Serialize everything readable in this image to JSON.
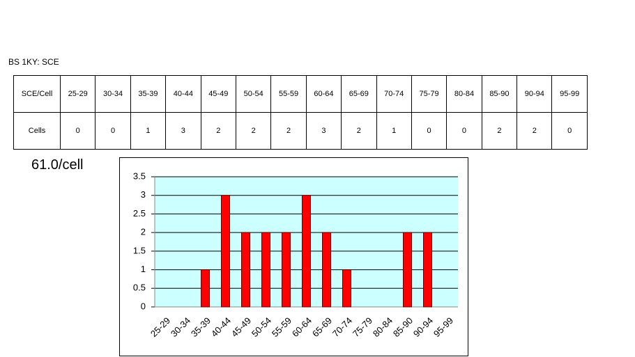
{
  "header": {
    "title": "BS 1KY: SCE"
  },
  "table": {
    "columns": [
      "SCE/Cell",
      "25-29",
      "30-34",
      "35-39",
      "40-44",
      "45-49",
      "50-54",
      "55-59",
      "60-64",
      "65-69",
      "70-74",
      "75-79",
      "80-84",
      "85-90",
      "90-94",
      "95-99"
    ],
    "rows": [
      [
        "Cells",
        0,
        0,
        1,
        3,
        2,
        2,
        2,
        3,
        2,
        1,
        0,
        0,
        2,
        2,
        0
      ]
    ]
  },
  "annotation": "61.0/cell",
  "chart_data": {
    "type": "bar",
    "categories": [
      "25-29",
      "30-34",
      "35-39",
      "40-44",
      "45-49",
      "50-54",
      "55-59",
      "60-64",
      "65-69",
      "70-74",
      "75-79",
      "80-84",
      "85-90",
      "90-94",
      "95-99"
    ],
    "values": [
      0,
      0,
      1,
      3,
      2,
      2,
      2,
      3,
      2,
      1,
      0,
      0,
      2,
      2,
      0
    ],
    "color": "#ff0000",
    "background": "#ccffff",
    "ylim": [
      0,
      3.5
    ],
    "yticks": [
      0,
      0.5,
      1,
      1.5,
      2,
      2.5,
      3,
      3.5
    ],
    "grid": true
  }
}
